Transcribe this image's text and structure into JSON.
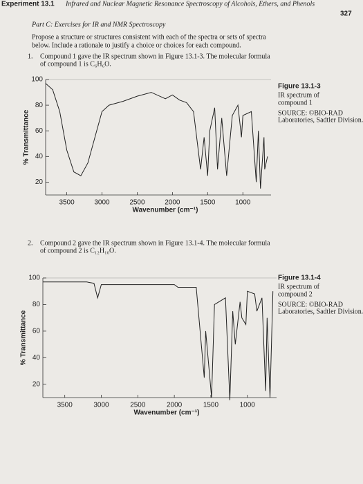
{
  "header": {
    "experiment": "Experiment 13.1",
    "running_title": "Infrared and Nuclear Magnetic Resonance Spectroscopy of Alcohols, Ethers, and Phenols",
    "page_number": "327"
  },
  "section": {
    "title": "Part C: Exercises for IR and NMR Spectroscopy",
    "intro_lines": [
      "Propose a structure or structures consistent with each of the spectra or sets of spectra",
      "below. Include a rationale to justify a choice or choices for each compound."
    ]
  },
  "items": [
    {
      "number": "1.",
      "lines": [
        "Compound 1 gave the IR spectrum shown in Figure 13.1-3. The molecular formula",
        "of compound 1 is C₆H₆O."
      ]
    },
    {
      "number": "2.",
      "lines": [
        "Compound 2 gave the IR spectrum shown in Figure 13.1-4. The molecular formula",
        "of compound 2 is C₁₂H₁₀O."
      ]
    }
  ],
  "figures": [
    {
      "label": "Figure 13.1-3",
      "caption_lines": [
        "IR spectrum of",
        "compound 1"
      ],
      "source_lines": [
        "SOURCE: ©BIO-RAD",
        "Laboratories, Sadtler Division."
      ]
    },
    {
      "label": "Figure 13.1-4",
      "caption_lines": [
        "IR spectrum of",
        "compound 2"
      ],
      "source_lines": [
        "SOURCE: ©BIO-RAD",
        "Laboratories, Sadtler Division."
      ]
    }
  ],
  "chart_data": [
    {
      "type": "line",
      "x_label": "Wavenumber (cm⁻¹)",
      "y_label": "% Transmittance",
      "color": "#222222",
      "xlim": [
        3800,
        600
      ],
      "ylim": [
        10,
        100
      ],
      "xticks": [
        3500,
        3000,
        2500,
        2000,
        1500,
        1000
      ],
      "yticks": [
        20,
        40,
        60,
        80,
        100
      ],
      "x": [
        3800,
        3700,
        3600,
        3500,
        3400,
        3300,
        3200,
        3100,
        3000,
        2900,
        2700,
        2500,
        2300,
        2100,
        2000,
        1900,
        1800,
        1700,
        1600,
        1550,
        1500,
        1470,
        1400,
        1360,
        1300,
        1230,
        1170,
        1150,
        1070,
        1020,
        1000,
        880,
        810,
        780,
        750,
        700,
        690,
        650
      ],
      "series": [
        {
          "values": [
            97,
            92,
            75,
            45,
            28,
            25,
            35,
            55,
            75,
            80,
            83,
            87,
            90,
            85,
            88,
            84,
            82,
            75,
            30,
            55,
            25,
            60,
            78,
            30,
            70,
            25,
            60,
            72,
            80,
            55,
            72,
            75,
            20,
            60,
            15,
            55,
            30,
            40
          ]
        }
      ]
    },
    {
      "type": "line",
      "x_label": "Wavenumber (cm⁻¹)",
      "y_label": "% Transmittance",
      "color": "#222222",
      "xlim": [
        3800,
        600
      ],
      "ylim": [
        10,
        100
      ],
      "xticks": [
        3500,
        3000,
        2500,
        2000,
        1500,
        1000
      ],
      "yticks": [
        20,
        40,
        60,
        80,
        100
      ],
      "x": [
        3800,
        3200,
        3100,
        3050,
        3000,
        2500,
        2000,
        1950,
        1700,
        1590,
        1570,
        1490,
        1450,
        1300,
        1240,
        1200,
        1165,
        1100,
        1075,
        1020,
        1000,
        900,
        870,
        800,
        750,
        730,
        690,
        650
      ],
      "series": [
        {
          "values": [
            97,
            97,
            96,
            85,
            95,
            95,
            95,
            93,
            93,
            25,
            60,
            10,
            80,
            85,
            8,
            75,
            50,
            82,
            70,
            65,
            90,
            88,
            75,
            85,
            15,
            70,
            10,
            90
          ]
        }
      ]
    }
  ]
}
